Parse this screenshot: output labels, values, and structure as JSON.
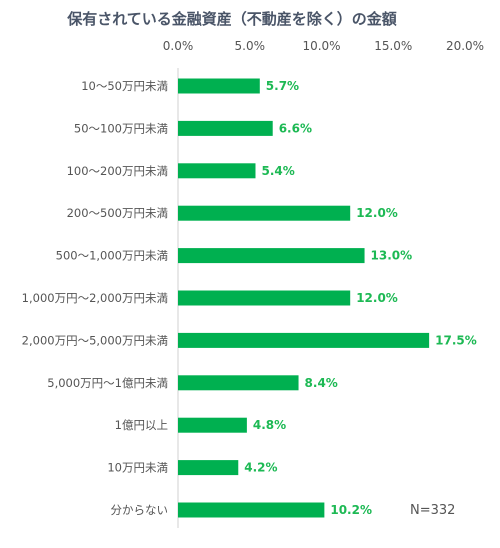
{
  "chart_data": {
    "type": "bar",
    "orientation": "horizontal",
    "title": "保有されている金融資産（不動産を除く）の金額",
    "xlim": [
      0,
      20
    ],
    "x_ticks": [
      "0.0%",
      "5.0%",
      "10.0%",
      "15.0%",
      "20.0%"
    ],
    "categories": [
      "10～50万円未満",
      "50～100万円未満",
      "100～200万円未満",
      "200～500万円未満",
      "500～1,000万円未満",
      "1,000万円～2,000万円未満",
      "2,000万円～5,000万円未満",
      "5,000万円～1億円未満",
      "1億円以上",
      "10万円未満",
      "分からない"
    ],
    "values": [
      5.7,
      6.6,
      5.4,
      12.0,
      13.0,
      12.0,
      17.5,
      8.4,
      4.8,
      4.2,
      10.2
    ],
    "value_labels": [
      "5.7%",
      "6.6%",
      "5.4%",
      "12.0%",
      "13.0%",
      "12.0%",
      "17.5%",
      "8.4%",
      "4.8%",
      "4.2%",
      "10.2%"
    ],
    "sample_note": "N=332",
    "bar_color": "#00b050",
    "label_color": "#1db954",
    "grid": false
  }
}
